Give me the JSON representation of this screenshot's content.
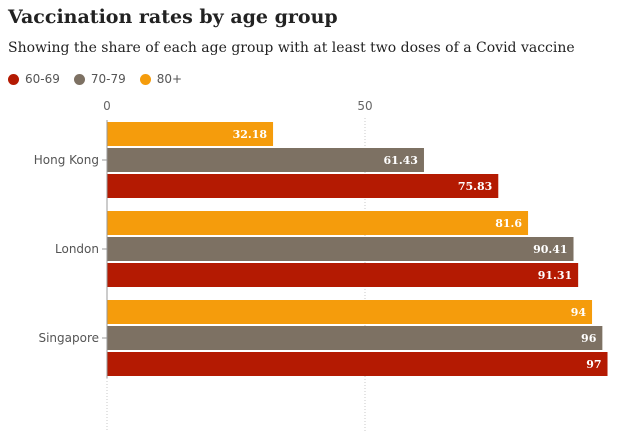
{
  "header": {
    "title": "Vaccination rates by age group",
    "subtitle": "Showing the share of each age group with at least two doses of a Covid vaccine"
  },
  "legend": [
    {
      "name": "60-69",
      "color": "#b41a02"
    },
    {
      "name": "70-79",
      "color": "#7d7163"
    },
    {
      "name": "80+",
      "color": "#f59c0c"
    }
  ],
  "chart_data": {
    "type": "bar",
    "orientation": "horizontal",
    "categories": [
      "Hong Kong",
      "London",
      "Singapore"
    ],
    "series": [
      {
        "name": "80+",
        "color": "#f59c0c",
        "values": [
          32.18,
          81.6,
          94
        ]
      },
      {
        "name": "70-79",
        "color": "#7d7163",
        "values": [
          61.43,
          90.41,
          96
        ]
      },
      {
        "name": "60-69",
        "color": "#b41a02",
        "values": [
          75.83,
          91.31,
          97
        ]
      }
    ],
    "value_labels": [
      [
        "32.18",
        "81.6",
        "94"
      ],
      [
        "61.43",
        "90.41",
        "96"
      ],
      [
        "75.83",
        "91.31",
        "97"
      ]
    ],
    "xticks": [
      0,
      50
    ],
    "xtick_labels": [
      "0",
      "50"
    ],
    "xlim": [
      0,
      100
    ],
    "grid": true,
    "legend_position": "top-left"
  }
}
